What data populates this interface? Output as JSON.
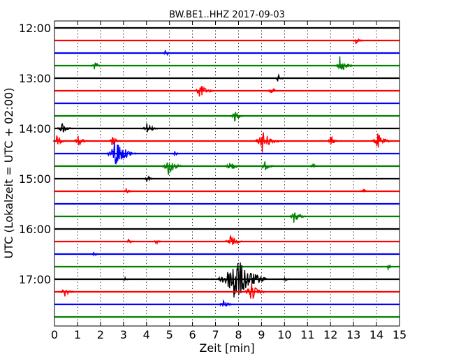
{
  "chart_data": {
    "type": "line",
    "title": "BW.BE1..HHZ 2017-09-03",
    "xlabel": "Zeit  [min]",
    "ylabel": "UTC (Lokalzeit = UTC + 02:00)",
    "xlim": [
      0,
      15
    ],
    "x_ticks": [
      "0",
      "1",
      "2",
      "3",
      "4",
      "5",
      "6",
      "7",
      "8",
      "9",
      "10",
      "11",
      "12",
      "13",
      "14",
      "15"
    ],
    "y_ticks": [
      "12:00",
      "13:00",
      "14:00",
      "15:00",
      "16:00",
      "17:00"
    ],
    "grid": "vertical dotted",
    "trace_interval_min": 15,
    "trace_colors": [
      "#000000",
      "#ff0000",
      "#0000ff",
      "#008000"
    ],
    "traces": [
      {
        "start": "12:00",
        "events": []
      },
      {
        "start": "12:15",
        "events": [
          {
            "t": 13.1,
            "amp": 0.6
          }
        ]
      },
      {
        "start": "12:30",
        "events": [
          {
            "t": 4.8,
            "amp": 0.5
          }
        ]
      },
      {
        "start": "12:45",
        "events": [
          {
            "t": 1.7,
            "amp": 0.7
          },
          {
            "t": 12.4,
            "amp": 1.3
          }
        ]
      },
      {
        "start": "13:00",
        "events": [
          {
            "t": 9.7,
            "amp": 0.6
          }
        ]
      },
      {
        "start": "13:15",
        "events": [
          {
            "t": 6.3,
            "amp": 1.3
          },
          {
            "t": 9.4,
            "amp": 0.7
          }
        ]
      },
      {
        "start": "13:30",
        "events": []
      },
      {
        "start": "13:45",
        "events": [
          {
            "t": 7.8,
            "amp": 0.9
          }
        ]
      },
      {
        "start": "14:00",
        "events": [
          {
            "t": 0.3,
            "amp": 1.0
          },
          {
            "t": 4.0,
            "amp": 1.0
          }
        ]
      },
      {
        "start": "14:15",
        "events": [
          {
            "t": 0.1,
            "amp": 0.8
          },
          {
            "t": 1.0,
            "amp": 0.9
          },
          {
            "t": 2.5,
            "amp": 0.8
          },
          {
            "t": 9.0,
            "amp": 1.9
          },
          {
            "t": 12.0,
            "amp": 0.8
          },
          {
            "t": 14.0,
            "amp": 1.4
          }
        ]
      },
      {
        "start": "14:30",
        "events": [
          {
            "t": 2.6,
            "amp": 2.5
          },
          {
            "t": 5.2,
            "amp": 0.4
          }
        ]
      },
      {
        "start": "14:45",
        "events": [
          {
            "t": 4.9,
            "amp": 1.6
          },
          {
            "t": 7.6,
            "amp": 1.0
          },
          {
            "t": 9.1,
            "amp": 0.9
          },
          {
            "t": 11.2,
            "amp": 0.5
          }
        ]
      },
      {
        "start": "15:00",
        "events": [
          {
            "t": 4.0,
            "amp": 0.5
          }
        ]
      },
      {
        "start": "15:15",
        "events": [
          {
            "t": 3.1,
            "amp": 0.5
          },
          {
            "t": 13.4,
            "amp": 0.4
          }
        ]
      },
      {
        "start": "15:30",
        "events": []
      },
      {
        "start": "15:45",
        "events": [
          {
            "t": 10.4,
            "amp": 1.1
          }
        ]
      },
      {
        "start": "16:00",
        "events": []
      },
      {
        "start": "16:15",
        "events": [
          {
            "t": 3.2,
            "amp": 0.4
          },
          {
            "t": 4.4,
            "amp": 0.4
          },
          {
            "t": 7.6,
            "amp": 1.2
          }
        ]
      },
      {
        "start": "16:30",
        "events": [
          {
            "t": 1.7,
            "amp": 0.4
          }
        ]
      },
      {
        "start": "16:45",
        "events": [
          {
            "t": 14.5,
            "amp": 0.4
          }
        ]
      },
      {
        "start": "17:00",
        "events": [
          {
            "t": 3.0,
            "amp": 0.4
          },
          {
            "t": 7.7,
            "amp": 4.5
          },
          {
            "t": 10.0,
            "amp": 0.4
          }
        ]
      },
      {
        "start": "17:15",
        "events": [
          {
            "t": 0.4,
            "amp": 0.9
          },
          {
            "t": 8.5,
            "amp": 1.6
          }
        ]
      },
      {
        "start": "17:30",
        "events": [
          {
            "t": 7.3,
            "amp": 0.8
          }
        ]
      },
      {
        "start": "17:45",
        "events": []
      }
    ]
  }
}
